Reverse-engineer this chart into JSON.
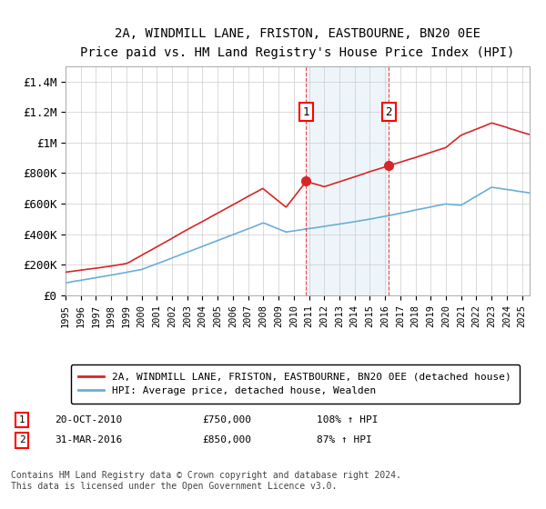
{
  "title": "2A, WINDMILL LANE, FRISTON, EASTBOURNE, BN20 0EE",
  "subtitle": "Price paid vs. HM Land Registry's House Price Index (HPI)",
  "ylabel_ticks": [
    "£0",
    "£200K",
    "£400K",
    "£600K",
    "£800K",
    "£1M",
    "£1.2M",
    "£1.4M"
  ],
  "ytick_values": [
    0,
    200000,
    400000,
    600000,
    800000,
    1000000,
    1200000,
    1400000
  ],
  "ylim": [
    0,
    1500000
  ],
  "xlim_start": 1995.0,
  "xlim_end": 2025.5,
  "hpi_color": "#6baed6",
  "price_color": "#d62728",
  "sale1_x": 2010.8,
  "sale1_y": 750000,
  "sale2_x": 2016.25,
  "sale2_y": 850000,
  "shade_x1": 2010.8,
  "shade_x2": 2016.25,
  "legend_line1": "2A, WINDMILL LANE, FRISTON, EASTBOURNE, BN20 0EE (detached house)",
  "legend_line2": "HPI: Average price, detached house, Wealden",
  "note1_num": "1",
  "note1_date": "20-OCT-2010",
  "note1_price": "£750,000",
  "note1_hpi": "108% ↑ HPI",
  "note2_num": "2",
  "note2_date": "31-MAR-2016",
  "note2_price": "£850,000",
  "note2_hpi": "87% ↑ HPI",
  "footer": "Contains HM Land Registry data © Crown copyright and database right 2024.\nThis data is licensed under the Open Government Licence v3.0."
}
